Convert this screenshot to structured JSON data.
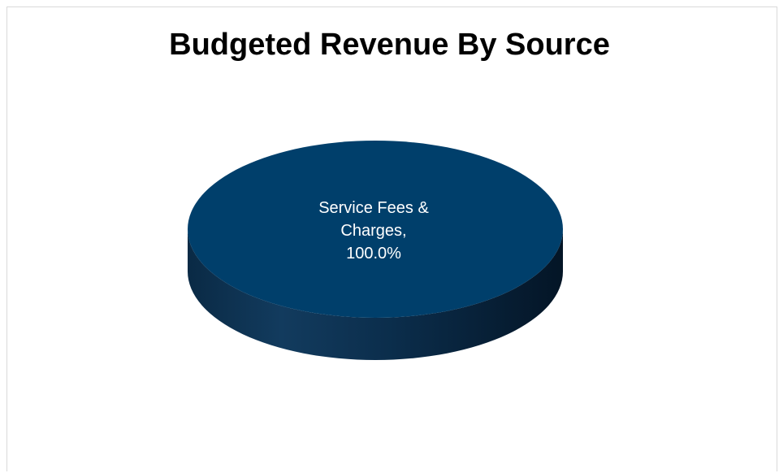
{
  "chart_data": {
    "type": "pie",
    "title": "Budgeted Revenue By Source",
    "slices": [
      {
        "label": "Service Fees & Charges,",
        "value": 100.0,
        "value_label": "100.0%",
        "color": "#003f6b"
      }
    ],
    "style": "3d",
    "legend": "none"
  }
}
